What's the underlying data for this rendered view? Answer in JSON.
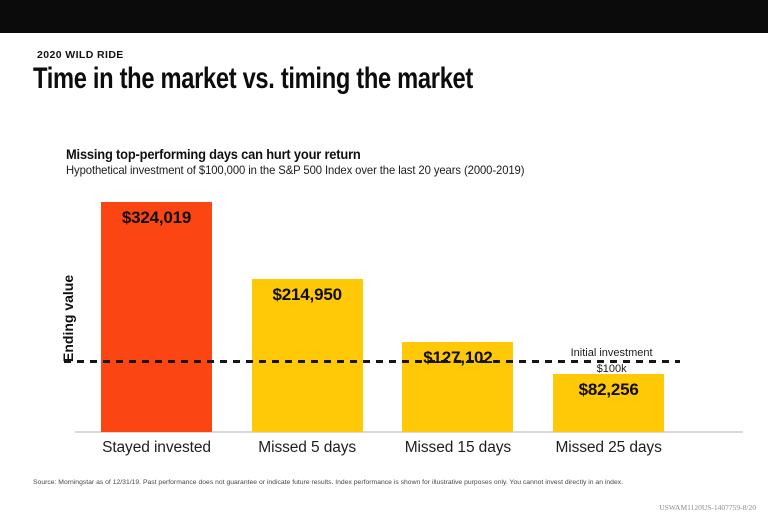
{
  "header": {
    "topbar_color": "#0b0b0b",
    "eyebrow": "2020 WILD RIDE",
    "title": "Time in the market vs. timing the market"
  },
  "chart": {
    "heading": "Missing top-performing days can hurt your return",
    "subheading": "Hypothetical investment of $100,000 in the S&P 500 Index over the last 20 years (2000-2019)"
  },
  "chart_data": {
    "type": "bar",
    "title": "Missing top-performing days can hurt your return",
    "subtitle": "Hypothetical investment of $100,000 in the S&P 500 Index over the last 20 years (2000-2019)",
    "categories": [
      "Stayed invested",
      "Missed 5 days",
      "Missed 15 days",
      "Missed 25 days"
    ],
    "values": [
      324019,
      214950,
      127102,
      82256
    ],
    "value_labels": [
      "$324,019",
      "$214,950",
      "$127,102",
      "$82,256"
    ],
    "bar_colors": [
      "#fb4613",
      "#ffc907",
      "#ffc907",
      "#ffc907"
    ],
    "xlabel": "",
    "ylabel": "Ending value",
    "ylim": [
      0,
      324019
    ],
    "grid": false,
    "legend": "none",
    "reference_line": {
      "value": 100000,
      "label": "Initial investment",
      "sublabel": "$100k",
      "style": "dashed",
      "color": "#161616"
    }
  },
  "footer": {
    "source": "Source: Morningstar as of 12/31/19. Past performance does not guarantee or indicate future results. Index performance is shown for illustrative purposes only. You cannot invest directly in an index.",
    "document_id": "USWAM1120US-1407759-8/20"
  }
}
